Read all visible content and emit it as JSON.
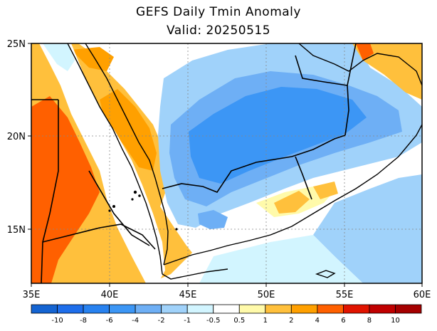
{
  "title": "GEFS Daily Tmin Anomaly",
  "subtitle": "Valid: 20250515",
  "map": {
    "lon_range": [
      35,
      60
    ],
    "lat_range": [
      12,
      25
    ],
    "x_ticks": [
      "35E",
      "40E",
      "45E",
      "50E",
      "55E",
      "60E"
    ],
    "y_ticks": [
      "25N",
      "20N",
      "15N"
    ],
    "grid": "dotted at 5 degree intervals"
  },
  "colorbar": {
    "labels": [
      "-10",
      "-8",
      "-6",
      "-4",
      "-2",
      "-1",
      "-0.5",
      "0.5",
      "1",
      "2",
      "4",
      "6",
      "8",
      "10"
    ],
    "colors": [
      "#1464d2",
      "#1e6eeb",
      "#2882f0",
      "#3c96f5",
      "#6eaff5",
      "#a0d2fa",
      "#d2f5ff",
      "#ffffff",
      "#fffaaa",
      "#ffc03c",
      "#ffa000",
      "#ff6000",
      "#e11400",
      "#c00000",
      "#a50000"
    ]
  },
  "palette": {
    "water": "#ffffff",
    "neutral": "#ffffff",
    "light_cool": "#d2f5ff",
    "cool1": "#a0d2fa",
    "cool2": "#6eaff5",
    "cool3": "#3c96f5",
    "warm1": "#fffaaa",
    "warm2": "#ffc03c",
    "warm3": "#ffa000",
    "warm4": "#ff6000"
  }
}
